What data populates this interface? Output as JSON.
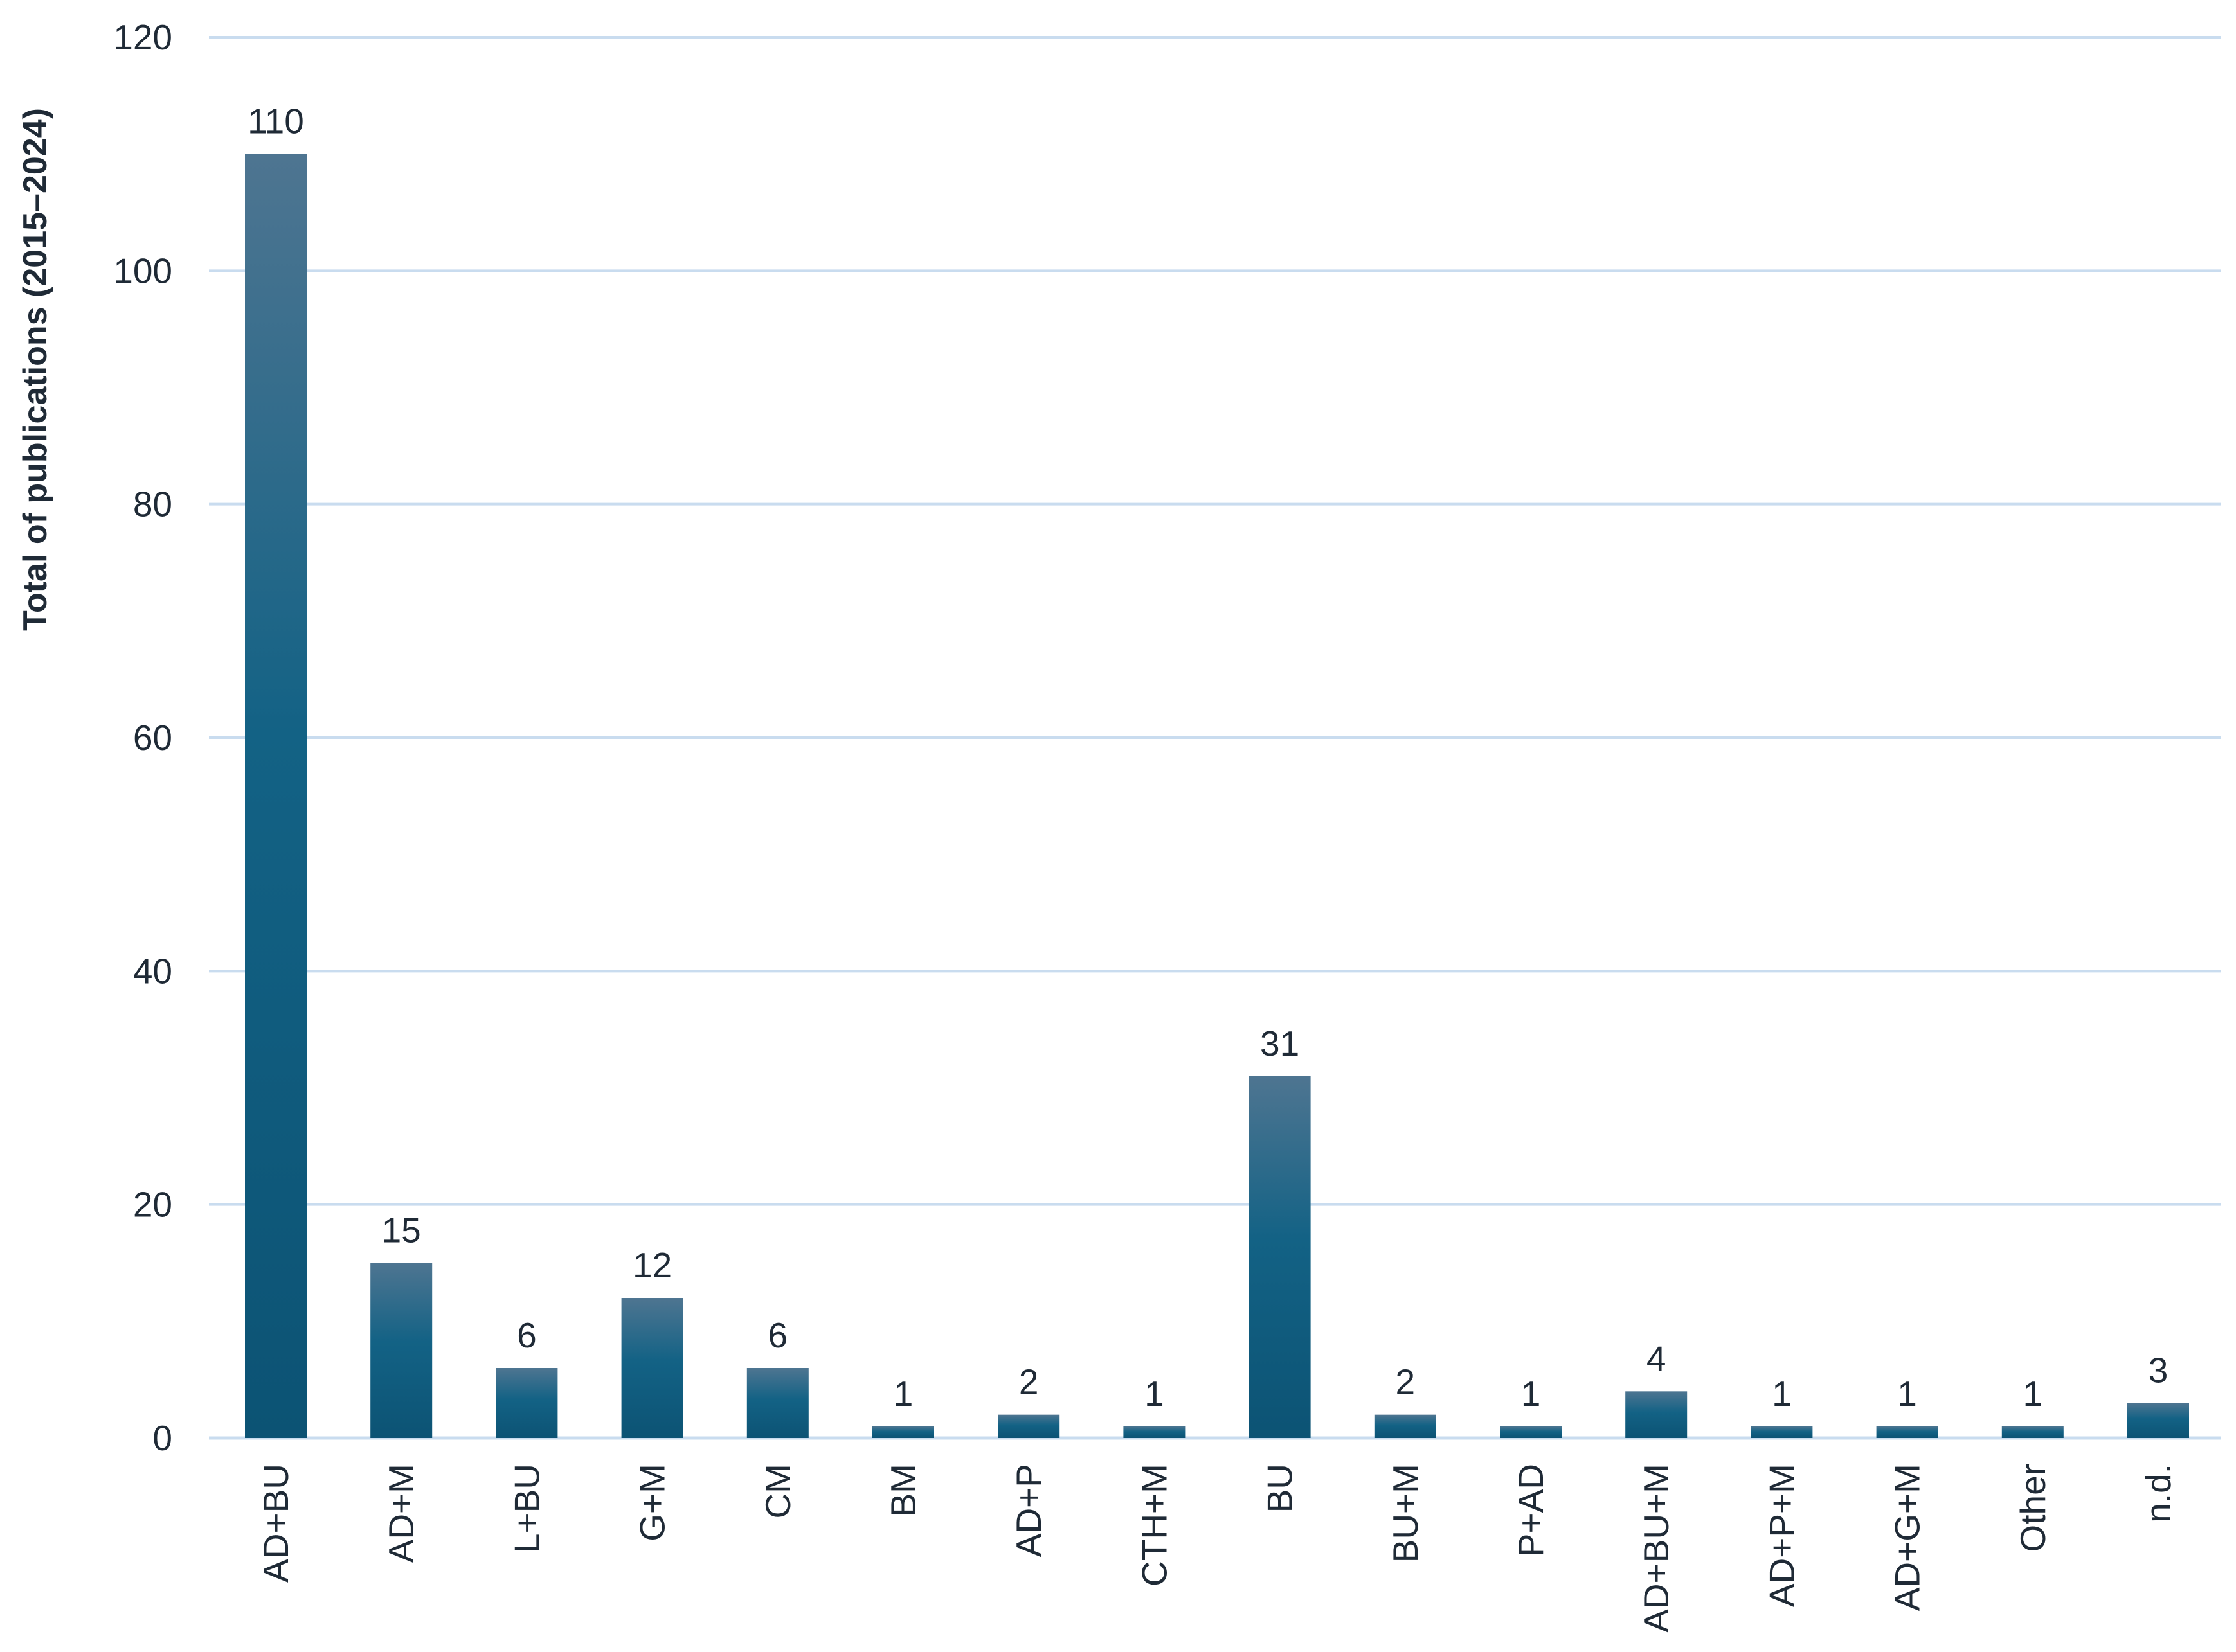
{
  "chart_data": {
    "type": "bar",
    "title": "",
    "xlabel": "",
    "ylabel": "Total of publications (2015–2024)",
    "ylim": [
      0,
      120
    ],
    "yticks": [
      0,
      20,
      40,
      60,
      80,
      100,
      120
    ],
    "grid": true,
    "legend": "none",
    "categories": [
      "AD+BU",
      "AD+M",
      "L+BU",
      "G+M",
      "CM",
      "BM",
      "AD+P",
      "CTH+M",
      "BU",
      "BU+M",
      "P+AD",
      "AD+BU+M",
      "AD+P+M",
      "AD+G+M",
      "Other",
      "n.d."
    ],
    "values": [
      110,
      15,
      6,
      12,
      6,
      1,
      2,
      1,
      31,
      2,
      1,
      4,
      1,
      1,
      1,
      3
    ],
    "colors": {
      "bar_top": "#4e7591",
      "bar_mid": "#136285",
      "bar_bottom": "#0c5374",
      "grid": "#c9dcef",
      "text": "#1f2a36"
    }
  }
}
